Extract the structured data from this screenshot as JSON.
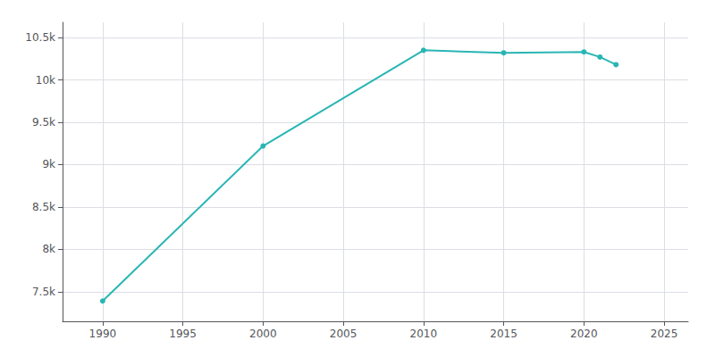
{
  "chart_data": {
    "type": "line",
    "x": [
      1990,
      2000,
      2010,
      2015,
      2020,
      2021,
      2022
    ],
    "values": [
      7390,
      9220,
      10350,
      10320,
      10330,
      10270,
      10180
    ],
    "color": "#2ab5b5",
    "marker": "circle",
    "xlim": [
      1987.5,
      2026.5
    ],
    "xticks": [
      1990,
      1995,
      2000,
      2005,
      2010,
      2015,
      2020,
      2025
    ],
    "ylim": [
      7150,
      10680
    ],
    "yticks": [
      {
        "value": 7500,
        "label": "7.5k"
      },
      {
        "value": 8000,
        "label": "8k"
      },
      {
        "value": 8500,
        "label": "8.5k"
      },
      {
        "value": 9000,
        "label": "9k"
      },
      {
        "value": 9500,
        "label": "9.5k"
      },
      {
        "value": 10000,
        "label": "10k"
      },
      {
        "value": 10500,
        "label": "10.5k"
      }
    ],
    "grid": true
  }
}
